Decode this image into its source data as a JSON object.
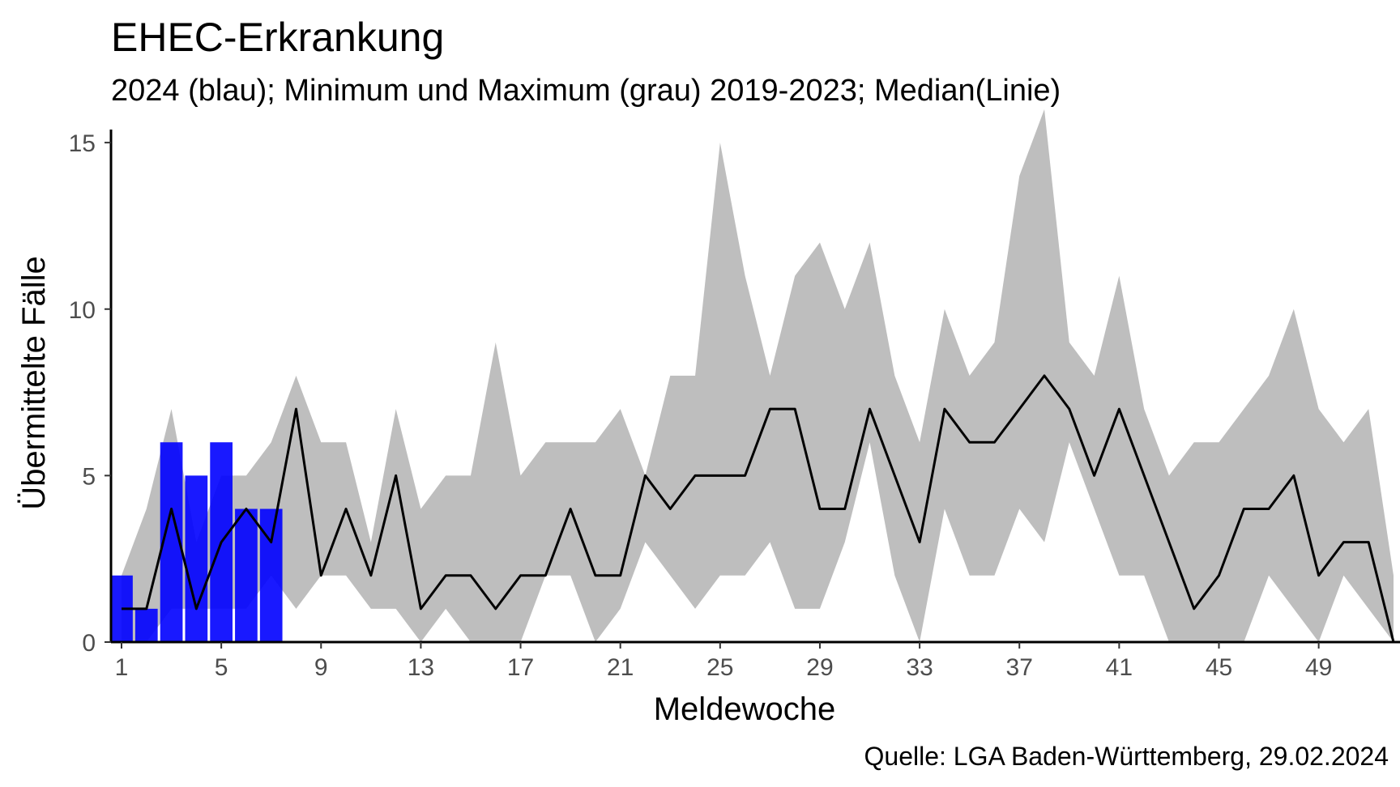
{
  "chart_data": {
    "type": "bar",
    "title": "EHEC-Erkrankung",
    "subtitle": "2024 (blau); Minimum und Maximum (grau) 2019-2023; Median(Linie)",
    "caption": "Quelle: LGA Baden-Württemberg, 29.02.2024",
    "xlabel": "Meldewoche",
    "ylabel": "Übermittelte Fälle",
    "xlim": [
      1,
      52
    ],
    "ylim": [
      0,
      16
    ],
    "x_ticks": [
      1,
      5,
      9,
      13,
      17,
      21,
      25,
      29,
      33,
      37,
      41,
      45,
      49
    ],
    "y_ticks": [
      0,
      5,
      10,
      15
    ],
    "grid": false,
    "colors": {
      "bars": "#0000ff",
      "range": "#bebebe",
      "median": "#000000"
    },
    "series": [
      {
        "name": "2024",
        "kind": "bar",
        "x": [
          1,
          2,
          3,
          4,
          5,
          6,
          7
        ],
        "values": [
          2,
          1,
          6,
          5,
          6,
          4,
          4
        ]
      },
      {
        "name": "Median",
        "kind": "line",
        "x": [
          1,
          2,
          3,
          4,
          5,
          6,
          7,
          8,
          9,
          10,
          11,
          12,
          13,
          14,
          15,
          16,
          17,
          18,
          19,
          20,
          21,
          22,
          23,
          24,
          25,
          26,
          27,
          28,
          29,
          30,
          31,
          32,
          33,
          34,
          35,
          36,
          37,
          38,
          39,
          40,
          41,
          42,
          43,
          44,
          45,
          46,
          47,
          48,
          49,
          50,
          51,
          52
        ],
        "values": [
          1,
          1,
          4,
          1,
          3,
          4,
          3,
          7,
          2,
          4,
          2,
          5,
          1,
          2,
          2,
          1,
          2,
          2,
          4,
          2,
          2,
          5,
          4,
          5,
          5,
          5,
          7,
          7,
          4,
          4,
          7,
          5,
          3,
          7,
          6,
          6,
          7,
          8,
          7,
          5,
          7,
          5,
          3,
          1,
          2,
          4,
          4,
          5,
          2,
          3,
          3,
          0
        ]
      },
      {
        "name": "Minimum",
        "kind": "range-low",
        "x": [
          1,
          2,
          3,
          4,
          5,
          6,
          7,
          8,
          9,
          10,
          11,
          12,
          13,
          14,
          15,
          16,
          17,
          18,
          19,
          20,
          21,
          22,
          23,
          24,
          25,
          26,
          27,
          28,
          29,
          30,
          31,
          32,
          33,
          34,
          35,
          36,
          37,
          38,
          39,
          40,
          41,
          42,
          43,
          44,
          45,
          46,
          47,
          48,
          49,
          50,
          51,
          52
        ],
        "values": [
          0,
          0,
          1,
          1,
          1,
          1,
          2,
          1,
          2,
          2,
          1,
          1,
          0,
          1,
          0,
          0,
          0,
          2,
          2,
          0,
          1,
          3,
          2,
          1,
          2,
          2,
          3,
          1,
          1,
          3,
          6,
          2,
          0,
          4,
          2,
          2,
          4,
          3,
          6,
          4,
          2,
          2,
          0,
          0,
          0,
          0,
          2,
          1,
          0,
          2,
          1,
          0
        ]
      },
      {
        "name": "Maximum",
        "kind": "range-high",
        "x": [
          1,
          2,
          3,
          4,
          5,
          6,
          7,
          8,
          9,
          10,
          11,
          12,
          13,
          14,
          15,
          16,
          17,
          18,
          19,
          20,
          21,
          22,
          23,
          24,
          25,
          26,
          27,
          28,
          29,
          30,
          31,
          32,
          33,
          34,
          35,
          36,
          37,
          38,
          39,
          40,
          41,
          42,
          43,
          44,
          45,
          46,
          47,
          48,
          49,
          50,
          51,
          52
        ],
        "values": [
          2,
          4,
          7,
          3,
          5,
          5,
          6,
          8,
          6,
          6,
          3,
          7,
          4,
          5,
          5,
          9,
          5,
          6,
          6,
          6,
          7,
          5,
          8,
          8,
          15,
          11,
          8,
          11,
          12,
          10,
          12,
          8,
          6,
          10,
          8,
          9,
          14,
          16,
          9,
          8,
          11,
          7,
          5,
          6,
          6,
          7,
          8,
          10,
          7,
          6,
          7,
          2
        ]
      }
    ]
  }
}
